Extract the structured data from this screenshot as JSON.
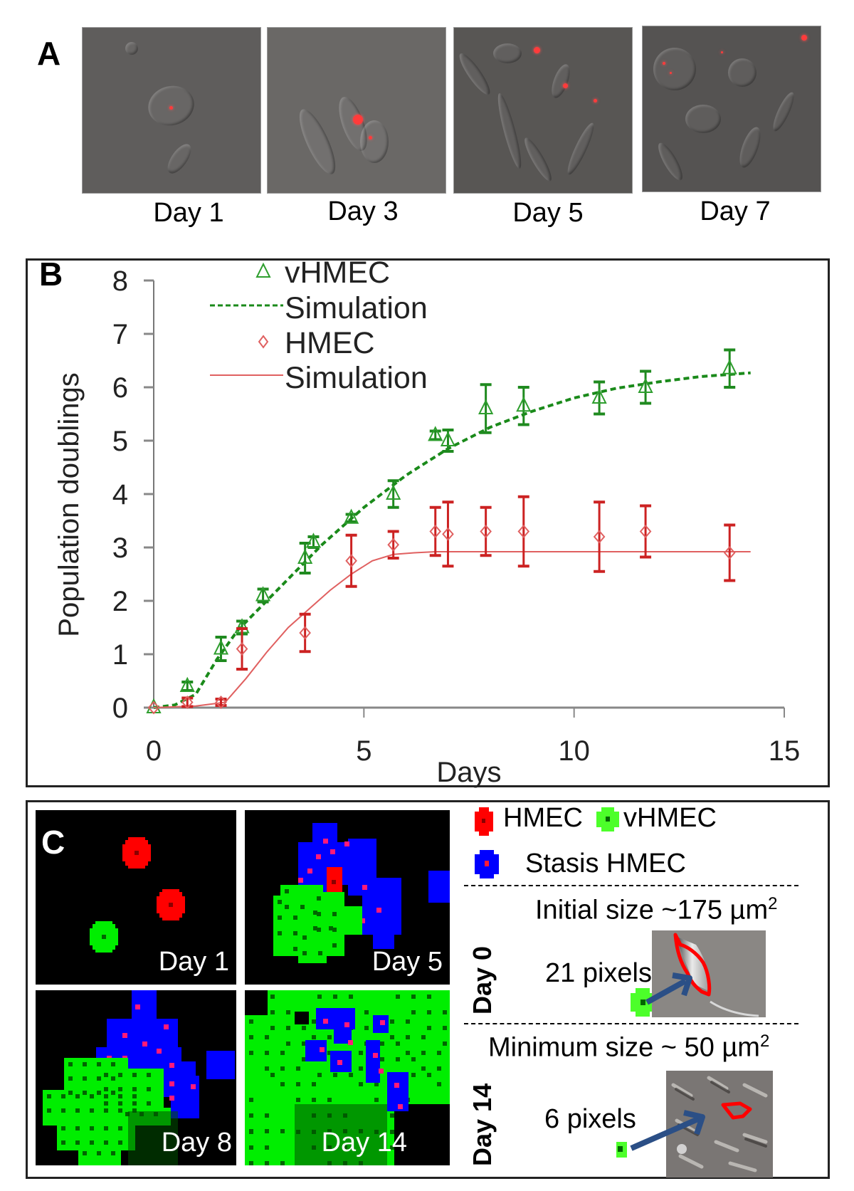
{
  "panel_a": {
    "letter": "A",
    "images": [
      {
        "label": "Day 1",
        "description": "Phase contrast micrograph, sparse cells with red fluorescent marker"
      },
      {
        "label": "Day 3",
        "description": "Phase contrast micrograph, small cluster with red fluorescent cell"
      },
      {
        "label": "Day 5",
        "description": "Phase contrast micrograph, denser elongated cells with red markers"
      },
      {
        "label": "Day 7",
        "description": "Phase contrast micrograph, confluent cells with few red markers"
      }
    ]
  },
  "panel_b": {
    "letter": "B"
  },
  "chart_data": {
    "type": "scatter",
    "title": "",
    "xlabel": "Days",
    "ylabel": "Population doublings",
    "xlim": [
      0,
      15
    ],
    "ylim": [
      0,
      8
    ],
    "xticks": [
      "0",
      "5",
      "10",
      "15"
    ],
    "yticks": [
      "0",
      "1",
      "2",
      "3",
      "4",
      "5",
      "6",
      "7",
      "8"
    ],
    "grid": false,
    "legend_position": "top-left",
    "legend": [
      {
        "label": "vHMEC",
        "marker": "triangle",
        "color": "#2e9e2e"
      },
      {
        "label": "Simulation",
        "line": "dashed",
        "color": "#1a8a1a"
      },
      {
        "label": "HMEC",
        "marker": "diamond",
        "color": "#e06060"
      },
      {
        "label": "Simulation",
        "line": "solid",
        "color": "#e06060"
      }
    ],
    "series": [
      {
        "name": "vHMEC",
        "kind": "points",
        "color": "#2e9e2e",
        "errcolor": "#1f8a1f",
        "x": [
          0,
          0.8,
          1.6,
          2.1,
          2.6,
          3.6,
          3.8,
          4.7,
          5.7,
          6.7,
          7.0,
          7.9,
          8.8,
          10.6,
          11.7,
          13.7
        ],
        "y": [
          0,
          0.4,
          1.1,
          1.5,
          2.1,
          2.8,
          3.1,
          3.55,
          4.0,
          5.1,
          5.0,
          5.6,
          5.65,
          5.8,
          6.0,
          6.35
        ],
        "err": [
          0,
          0.08,
          0.22,
          0.12,
          0.12,
          0.28,
          0.1,
          0.07,
          0.25,
          0.08,
          0.2,
          0.45,
          0.35,
          0.3,
          0.3,
          0.35
        ]
      },
      {
        "name": "vHMEC Simulation",
        "kind": "line",
        "dash": "dashed",
        "color": "#1a8a1a",
        "x": [
          0,
          0.5,
          1,
          1.5,
          2,
          2.5,
          3,
          3.5,
          4,
          4.5,
          5,
          5.5,
          6,
          6.5,
          7,
          7.5,
          8,
          9,
          10,
          11,
          12,
          13,
          14.2
        ],
        "y": [
          0,
          0.05,
          0.25,
          0.9,
          1.45,
          1.85,
          2.25,
          2.65,
          3.05,
          3.4,
          3.75,
          4.05,
          4.35,
          4.6,
          4.85,
          5.05,
          5.25,
          5.55,
          5.8,
          5.98,
          6.1,
          6.2,
          6.27
        ]
      },
      {
        "name": "HMEC",
        "kind": "points",
        "color": "#e06060",
        "errcolor": "#cc2222",
        "x": [
          0,
          0.8,
          1.6,
          2.1,
          3.6,
          4.7,
          5.7,
          6.7,
          7.0,
          7.9,
          8.8,
          10.6,
          11.7,
          13.7
        ],
        "y": [
          0,
          0.1,
          0.1,
          1.1,
          1.4,
          2.75,
          3.05,
          3.3,
          3.25,
          3.3,
          3.3,
          3.2,
          3.3,
          2.9
        ],
        "err": [
          0,
          0.08,
          0.06,
          0.38,
          0.35,
          0.48,
          0.25,
          0.45,
          0.6,
          0.45,
          0.65,
          0.65,
          0.48,
          0.52
        ]
      },
      {
        "name": "HMEC Simulation",
        "kind": "line",
        "dash": "solid",
        "color": "#e06060",
        "x": [
          0,
          1,
          1.7,
          2.2,
          2.7,
          3.2,
          3.7,
          4.2,
          4.7,
          5.2,
          5.7,
          6.2,
          6.7,
          8,
          10,
          12,
          14.2
        ],
        "y": [
          0,
          0.03,
          0.1,
          0.55,
          1.05,
          1.5,
          1.85,
          2.2,
          2.5,
          2.75,
          2.87,
          2.9,
          2.92,
          2.92,
          2.92,
          2.92,
          2.92
        ]
      }
    ]
  },
  "panel_c": {
    "letter": "C",
    "tiles": [
      {
        "label": "Day 1"
      },
      {
        "label": "Day 5"
      },
      {
        "label": "Day 8"
      },
      {
        "label": "Day 14"
      }
    ],
    "legend": [
      {
        "label": "HMEC",
        "color": "#ff0000",
        "center": "#8a0000"
      },
      {
        "label": "vHMEC",
        "color": "#4cff2a",
        "center": "#006600"
      },
      {
        "label": "Stasis HMEC",
        "color": "#0000ff",
        "center": "#ff1a5a"
      }
    ],
    "colors": {
      "hmec": "#ff0000",
      "vhmec": "#00ee00",
      "stasis": "#0000ff",
      "stasis_dot": "#ff1a7a",
      "vhmec_dot": "#006600",
      "hmec_dot": "#8a0000"
    },
    "day0": {
      "side_label": "Day 0",
      "size_text": "Initial size ~175 µm",
      "superscript": "2",
      "pixels_text": "21 pixels"
    },
    "day14": {
      "side_label": "Day 14",
      "size_text": "Minimum size ~ 50 µm",
      "superscript": "2",
      "pixels_text": "6 pixels"
    },
    "arrow_color": "#2b4f86",
    "outline_color": "#ff0000"
  }
}
